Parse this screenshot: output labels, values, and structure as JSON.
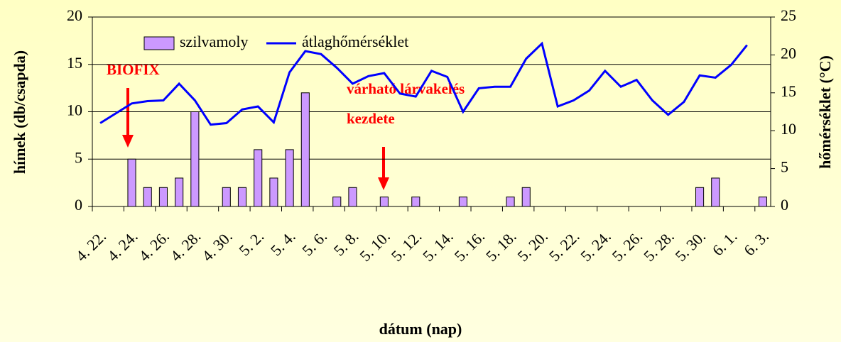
{
  "chart_data": {
    "type": "bar_line",
    "y_label": "hímek (db/csapda)",
    "y2_label": "hőmérséklet (°C)",
    "x_label": "dátum (nap)",
    "annotations": [
      "BIOFIX",
      "várható lárvakelés",
      "kezdete"
    ],
    "categories": [
      "4. 22.",
      null,
      "4. 24.",
      null,
      "4. 26.",
      null,
      "4. 28.",
      null,
      "4. 30.",
      null,
      "5. 2.",
      null,
      "5. 4.",
      null,
      "5. 6.",
      null,
      "5. 8.",
      null,
      "5. 10.",
      null,
      "5. 12.",
      null,
      "5. 14.",
      null,
      "5. 16.",
      null,
      "5. 18.",
      null,
      "5. 20.",
      null,
      "5. 22.",
      null,
      "5. 24.",
      null,
      "5. 26.",
      null,
      "5. 28.",
      null,
      "5. 30.",
      null,
      "6. 1.",
      null,
      "6. 3."
    ],
    "series": [
      {
        "name": "szilvamoly",
        "color": "#cc99ff",
        "kind": "bar",
        "values": [
          0,
          0,
          5,
          2,
          2,
          3,
          10,
          0,
          2,
          2,
          6,
          3,
          6,
          12,
          0,
          1,
          2,
          0,
          1,
          0,
          1,
          0,
          0,
          1,
          0,
          0,
          1,
          2,
          0,
          0,
          0,
          0,
          0,
          0,
          0,
          0,
          0,
          0,
          2,
          3,
          0,
          0,
          1
        ]
      },
      {
        "name": "átlaghőmérséklet",
        "color": "#0000ff",
        "kind": "line",
        "axis": "y2",
        "values": [
          11.0,
          12.3,
          13.6,
          13.9,
          14.0,
          16.2,
          14.0,
          10.8,
          11.0,
          12.8,
          13.2,
          11.1,
          17.7,
          20.5,
          20.1,
          18.3,
          16.2,
          17.2,
          17.6,
          14.9,
          14.5,
          17.9,
          17.1,
          12.5,
          15.6,
          15.8,
          15.8,
          19.5,
          21.5,
          13.2,
          14.0,
          15.3,
          17.9,
          15.8,
          16.7,
          14.0,
          12.1,
          13.8,
          17.3,
          17.0,
          18.7,
          21.3,
          null
        ]
      }
    ],
    "ylim": [
      0,
      20
    ],
    "yticks": [
      0,
      5,
      10,
      15,
      20
    ],
    "y2lim": [
      0,
      25
    ],
    "y2ticks": [
      0,
      5,
      10,
      15,
      20,
      25
    ],
    "grid": true
  }
}
